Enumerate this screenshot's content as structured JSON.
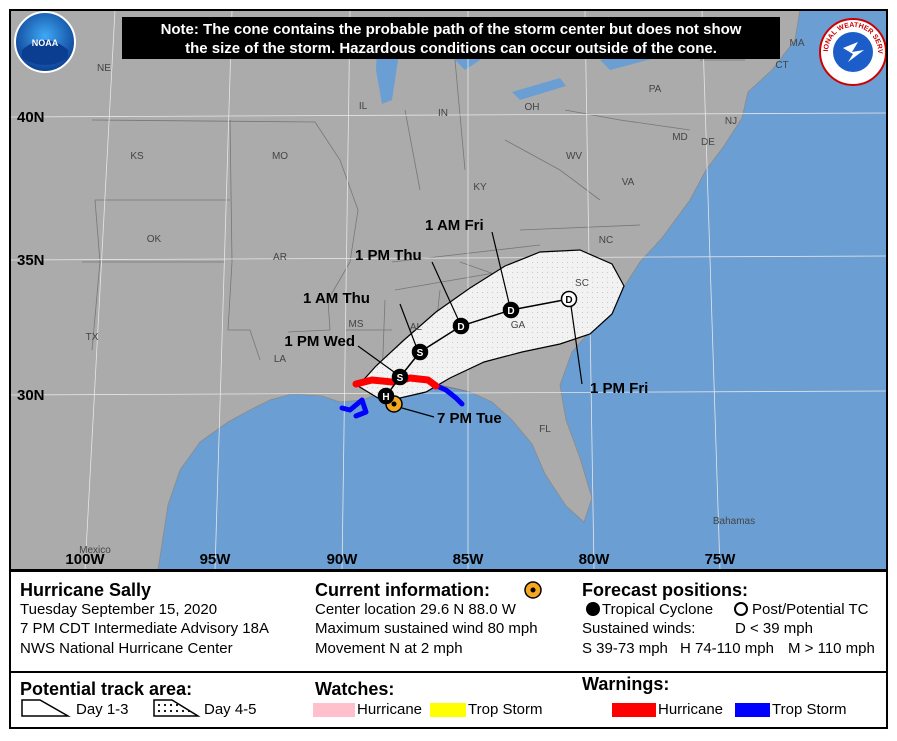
{
  "note": {
    "lines": [
      "Note: The cone contains the probable path of the storm center but does not show",
      "the size of the storm. Hazardous conditions can occur outside of the cone."
    ]
  },
  "logos": {
    "noaa": "NOAA",
    "nws": "NATIONAL WEATHER SERVICE"
  },
  "map": {
    "latitudes": [
      "40N",
      "35N",
      "30N"
    ],
    "longitudes": [
      "100W",
      "95W",
      "90W",
      "85W",
      "80W",
      "75W"
    ],
    "regions": [
      "NE",
      "IL",
      "IN",
      "OH",
      "PA",
      "KS",
      "MO",
      "KY",
      "WV",
      "VA",
      "NC",
      "SC",
      "GA",
      "AL",
      "MS",
      "LA",
      "AR",
      "OK",
      "TX",
      "FL",
      "MA",
      "CT",
      "NJ",
      "MD",
      "DE",
      "Bahamas",
      "Mexico"
    ],
    "track": [
      {
        "time": "7 PM Tue"
      },
      {
        "symbol": "H"
      },
      {
        "time": "1 PM Wed",
        "symbol": "S"
      },
      {
        "time": "1 AM Thu",
        "symbol": "S"
      },
      {
        "time": "1 PM Thu",
        "symbol": "D"
      },
      {
        "time": "1 AM Fri",
        "symbol": "D"
      },
      {
        "time": "1 PM Fri",
        "symbol": "D"
      }
    ]
  },
  "storm_info": {
    "name": "Hurricane Sally",
    "date": "Tuesday September 15, 2020",
    "advisory": "7 PM CDT Intermediate Advisory 18A",
    "center": "NWS National Hurricane Center"
  },
  "current": {
    "title": "Current information:",
    "lines": [
      "Center location 29.6 N 88.0 W",
      "Maximum sustained wind 80 mph",
      "Movement N at 2 mph"
    ]
  },
  "forecast": {
    "title": "Forecast positions:",
    "symbols": [
      "Tropical Cyclone",
      "Post/Potential TC"
    ],
    "winds_title": "Sustained winds:",
    "winds": [
      "D < 39 mph",
      "S 39-73 mph",
      "H 74-110 mph",
      "M > 110 mph"
    ]
  },
  "track_area": {
    "title": "Potential track area:",
    "items": [
      "Day 1-3",
      "Day 4-5"
    ]
  },
  "watches": {
    "title": "Watches:",
    "items": [
      {
        "label": "Hurricane",
        "color": "#ffc0cb"
      },
      {
        "label": "Trop Storm",
        "color": "#ffff00"
      }
    ]
  },
  "warnings": {
    "title": "Warnings:",
    "items": [
      {
        "label": "Hurricane",
        "color": "#ff0000"
      },
      {
        "label": "Trop Storm",
        "color": "#0000ff"
      }
    ]
  }
}
